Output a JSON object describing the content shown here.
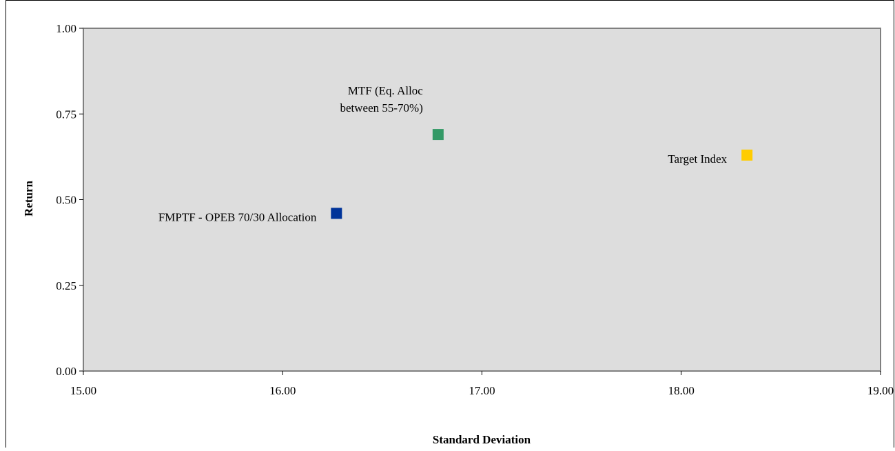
{
  "chart_data": {
    "type": "scatter",
    "title": "",
    "xlabel": "Standard Deviation",
    "ylabel": "Return",
    "xlim": [
      15.0,
      19.0
    ],
    "ylim": [
      0.0,
      1.0
    ],
    "x_ticks": [
      "15.00",
      "16.00",
      "17.00",
      "18.00",
      "19.00"
    ],
    "y_ticks": [
      "0.00",
      "0.25",
      "0.50",
      "0.75",
      "1.00"
    ],
    "x_tick_values": [
      15.0,
      16.0,
      17.0,
      18.0,
      19.0
    ],
    "y_tick_values": [
      0.0,
      0.25,
      0.5,
      0.75,
      1.0
    ],
    "grid": false,
    "legend": "none",
    "plot_background": "#dddddd",
    "points": [
      {
        "label_lines": [
          "FMPTF - OPEB 70/30 Allocation"
        ],
        "label_position": "left",
        "x": 16.27,
        "y": 0.46,
        "color": "#003399",
        "marker": "square"
      },
      {
        "label_lines": [
          "MTF (Eq. Alloc",
          "between 55-70%)"
        ],
        "label_position": "above-left",
        "x": 16.78,
        "y": 0.69,
        "color": "#339966",
        "marker": "square"
      },
      {
        "label_lines": [
          "Target Index"
        ],
        "label_position": "left",
        "x": 18.33,
        "y": 0.63,
        "color": "#ffcc00",
        "marker": "square"
      }
    ]
  }
}
